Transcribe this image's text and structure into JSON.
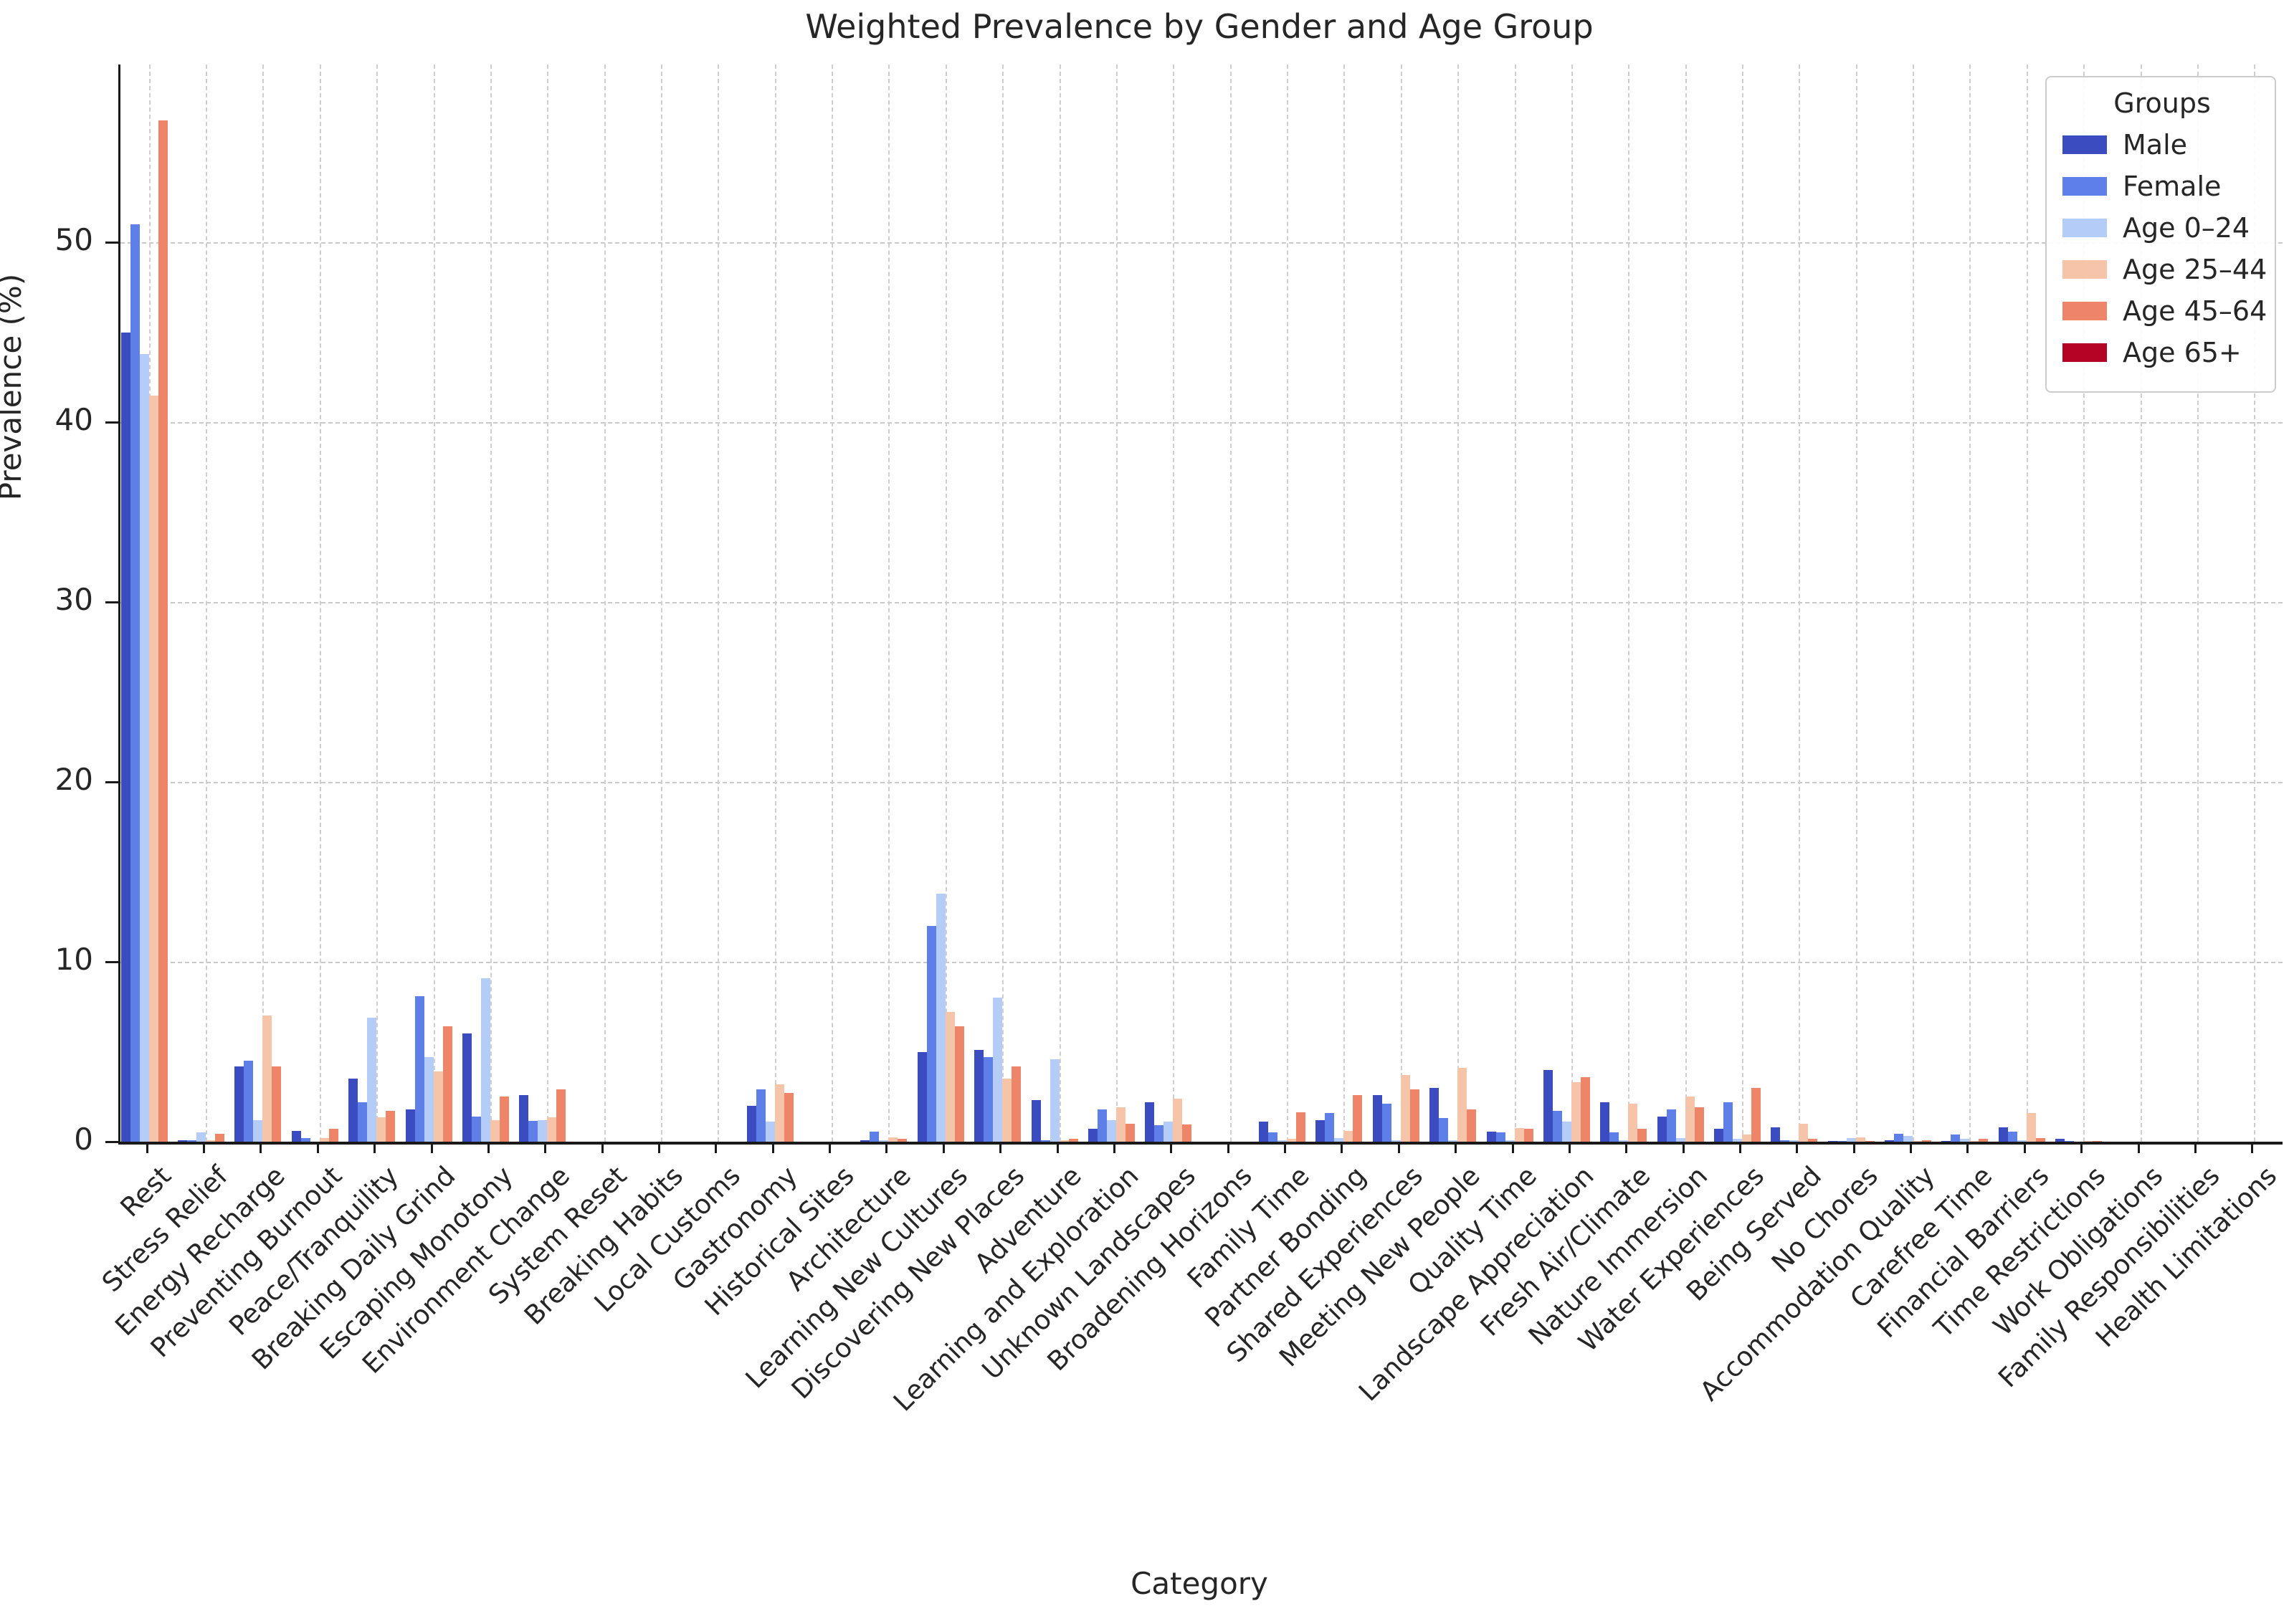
{
  "title": "Weighted Prevalence by Gender and Age Group",
  "xlabel": "Category",
  "ylabel": "Prevalence (%)",
  "legend": {
    "title": "Groups",
    "items": [
      {
        "label": "Male",
        "color": "#3b4cc0"
      },
      {
        "label": "Female",
        "color": "#5f7fe8"
      },
      {
        "label": "Age 0–24",
        "color": "#b3cdf8"
      },
      {
        "label": "Age 25–44",
        "color": "#f5c4a9"
      },
      {
        "label": "Age 45–64",
        "color": "#ee8468"
      },
      {
        "label": "Age 65+",
        "color": "#b40426"
      }
    ]
  },
  "chart_data": {
    "type": "bar",
    "title": "Weighted Prevalence by Gender and Age Group",
    "xlabel": "Category",
    "ylabel": "Prevalence (%)",
    "ylim": [
      0,
      59.9
    ],
    "yticks": [
      0,
      10,
      20,
      30,
      40,
      50
    ],
    "grid": true,
    "legend_position": "upper right",
    "categories": [
      "Rest",
      "Stress Relief",
      "Energy Recharge",
      "Preventing Burnout",
      "Peace/Tranquility",
      "Breaking Daily Grind",
      "Escaping Monotony",
      "Environment Change",
      "System Reset",
      "Breaking Habits",
      "Local Customs",
      "Gastronomy",
      "Historical Sites",
      "Architecture",
      "Learning New Cultures",
      "Discovering New Places",
      "Adventure",
      "Learning and Exploration",
      "Unknown Landscapes",
      "Broadening Horizons",
      "Family Time",
      "Partner Bonding",
      "Shared Experiences",
      "Meeting New People",
      "Quality Time",
      "Landscape Appreciation",
      "Fresh Air/Climate",
      "Nature Immersion",
      "Water Experiences",
      "Being Served",
      "No Chores",
      "Accommodation Quality",
      "Carefree Time",
      "Financial Barriers",
      "Time Restrictions",
      "Work Obligations",
      "Family Responsibilities",
      "Health Limitations"
    ],
    "series": [
      {
        "name": "Male",
        "color": "#3b4cc0",
        "values": [
          45.0,
          0.1,
          4.2,
          0.6,
          3.5,
          1.8,
          6.0,
          2.6,
          0,
          0,
          0,
          2.0,
          0,
          0.1,
          5.0,
          5.1,
          2.3,
          0.7,
          2.2,
          0,
          1.1,
          1.2,
          2.6,
          3.0,
          0.55,
          4.0,
          2.2,
          1.4,
          0.7,
          0.8,
          0.05,
          0.1,
          0.05,
          0.8,
          0.15,
          0,
          0,
          0
        ]
      },
      {
        "name": "Female",
        "color": "#5f7fe8",
        "values": [
          51.0,
          0.1,
          4.5,
          0.2,
          2.2,
          8.1,
          1.4,
          1.15,
          0,
          0,
          0,
          2.9,
          0,
          0.55,
          12.0,
          4.7,
          0.1,
          1.8,
          0.9,
          0,
          0.5,
          1.6,
          2.1,
          1.3,
          0.5,
          1.7,
          0.5,
          1.8,
          2.2,
          0.1,
          0.05,
          0.45,
          0.4,
          0.55,
          0.05,
          0,
          0,
          0
        ]
      },
      {
        "name": "Age 0–24",
        "color": "#b3cdf8",
        "values": [
          43.8,
          0.5,
          1.2,
          0,
          6.9,
          4.7,
          9.1,
          1.2,
          0,
          0,
          0,
          1.1,
          0,
          0.1,
          13.8,
          8.0,
          4.6,
          1.2,
          1.1,
          0,
          0.1,
          0.2,
          0.1,
          0.1,
          0.1,
          1.1,
          0.1,
          0.2,
          0.15,
          0.1,
          0.2,
          0.3,
          0.15,
          0.1,
          0,
          0,
          0,
          0
        ]
      },
      {
        "name": "Age 25–44",
        "color": "#f5c4a9",
        "values": [
          41.5,
          0.1,
          7.0,
          0.2,
          1.35,
          3.9,
          1.2,
          1.35,
          0,
          0,
          0,
          3.2,
          0,
          0.25,
          7.2,
          3.5,
          0.1,
          1.9,
          2.4,
          0,
          0.15,
          0.6,
          3.7,
          4.1,
          0.75,
          3.3,
          2.1,
          2.5,
          0.4,
          1.0,
          0.25,
          0.05,
          0.05,
          1.6,
          0.05,
          0,
          0,
          0
        ]
      },
      {
        "name": "Age 45–64",
        "color": "#ee8468",
        "values": [
          56.8,
          0.45,
          4.2,
          0.7,
          1.7,
          6.4,
          2.5,
          2.9,
          0,
          0,
          0,
          2.7,
          0,
          0.15,
          6.4,
          4.2,
          0.15,
          1.0,
          0.95,
          0,
          1.65,
          2.6,
          2.9,
          1.8,
          0.7,
          3.6,
          0.7,
          1.9,
          3.0,
          0.15,
          0.05,
          0.1,
          0.15,
          0.2,
          0.05,
          0,
          0,
          0
        ]
      },
      {
        "name": "Age 65+",
        "color": "#b40426",
        "values": [
          0,
          0,
          0,
          0,
          0,
          0,
          0,
          0,
          0,
          0,
          0,
          0,
          0,
          0,
          0,
          0,
          0,
          0,
          0,
          0,
          0,
          0,
          0,
          0,
          0,
          0,
          0,
          0,
          0,
          0,
          0,
          0,
          0,
          0,
          0,
          0,
          0,
          0
        ]
      }
    ]
  }
}
